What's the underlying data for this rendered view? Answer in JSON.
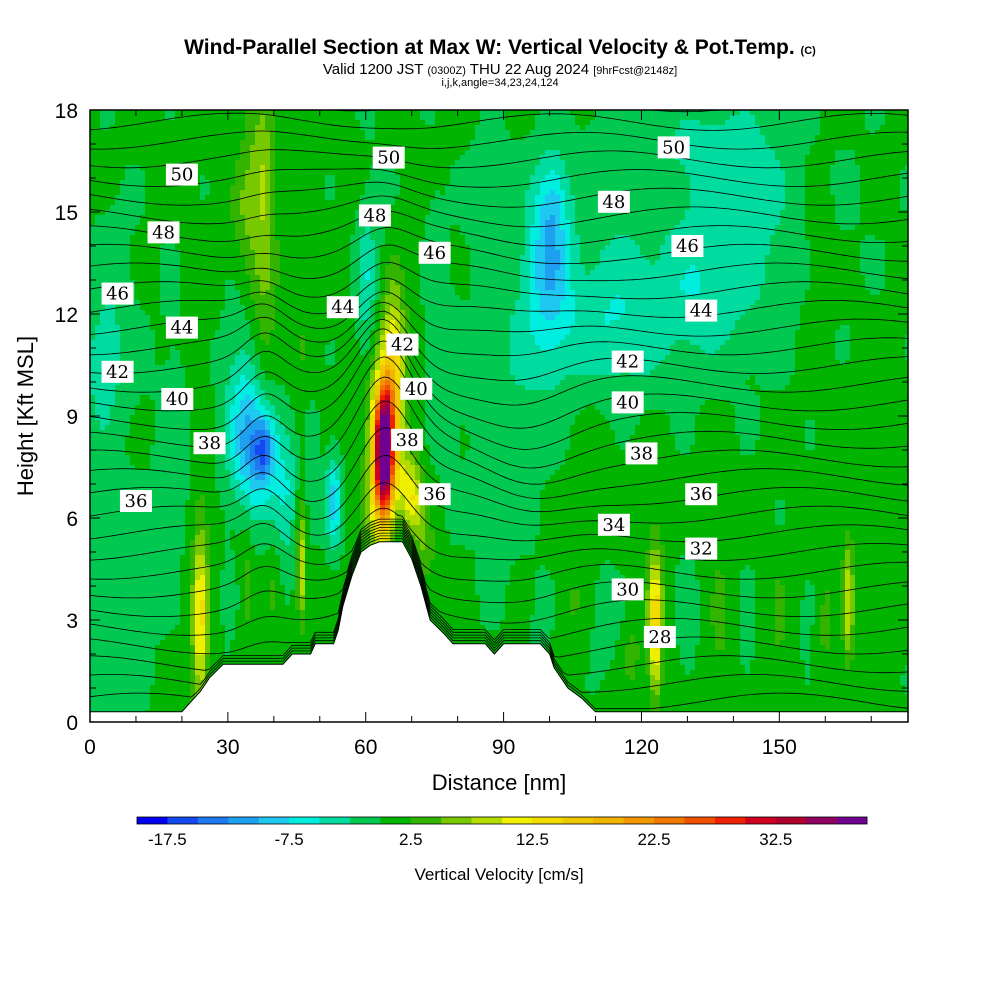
{
  "header": {
    "title": "Wind-Parallel Section at Max W: Vertical Velocity & Pot.Temp.",
    "title_mark": "(C)",
    "valid_a": "Valid 1200 JST",
    "valid_z": "(0300Z)",
    "valid_b": "THU 22 Aug 2024",
    "valid_fcst": "[9hrFcst@2148z]",
    "indices": "i,j,k,angle=34,23,24,124"
  },
  "chart_data": {
    "type": "heatmap",
    "xlabel": "Distance [nm]",
    "ylabel": "Height [Kft MSL]",
    "xlim": [
      0,
      178
    ],
    "ylim": [
      0,
      18
    ],
    "x_ticks": [
      0,
      30,
      60,
      90,
      120,
      150
    ],
    "y_ticks": [
      0,
      3,
      6,
      9,
      12,
      15,
      18
    ],
    "colorbar": {
      "label": "Vertical Velocity [cm/s]",
      "tick_labels": [
        "-17.5",
        "-7.5",
        "2.5",
        "12.5",
        "22.5",
        "32.5"
      ],
      "tick_values": [
        -17.5,
        -7.5,
        2.5,
        12.5,
        22.5,
        32.5
      ],
      "range": [
        -20,
        40
      ],
      "step": 2.5,
      "colors": [
        "#0000f0",
        "#1448f0",
        "#1e78f0",
        "#1ea0f0",
        "#1ec8f0",
        "#00eee0",
        "#00dca0",
        "#00c850",
        "#00b400",
        "#32b400",
        "#78c800",
        "#b4dc00",
        "#eef000",
        "#f0dc00",
        "#f0c800",
        "#f0b400",
        "#f09600",
        "#f07800",
        "#f05000",
        "#f02000",
        "#d00020",
        "#b00030",
        "#900060",
        "#700090"
      ]
    },
    "terrain_profile": [
      [
        0,
        0.3
      ],
      [
        20,
        0.3
      ],
      [
        22,
        0.6
      ],
      [
        24,
        0.9
      ],
      [
        26,
        1.3
      ],
      [
        29,
        1.7
      ],
      [
        42,
        1.7
      ],
      [
        44,
        2.0
      ],
      [
        48,
        2.0
      ],
      [
        49,
        2.3
      ],
      [
        53,
        2.3
      ],
      [
        54,
        2.7
      ],
      [
        55,
        3.4
      ],
      [
        57,
        4.3
      ],
      [
        59,
        5.0
      ],
      [
        61,
        5.2
      ],
      [
        63,
        5.3
      ],
      [
        68,
        5.3
      ],
      [
        70,
        4.8
      ],
      [
        72,
        4.0
      ],
      [
        74,
        3.0
      ],
      [
        77,
        2.6
      ],
      [
        79,
        2.3
      ],
      [
        86,
        2.3
      ],
      [
        88,
        2.0
      ],
      [
        90,
        2.3
      ],
      [
        98,
        2.3
      ],
      [
        100,
        2.0
      ],
      [
        101,
        1.6
      ],
      [
        104,
        1.0
      ],
      [
        107,
        0.7
      ],
      [
        110,
        0.3
      ],
      [
        178,
        0.3
      ]
    ],
    "theta_contour_labels": [
      {
        "text": "50",
        "x": 20,
        "y": 16.1
      },
      {
        "text": "48",
        "x": 16,
        "y": 14.4
      },
      {
        "text": "46",
        "x": 6,
        "y": 12.6
      },
      {
        "text": "44",
        "x": 20,
        "y": 11.6
      },
      {
        "text": "42",
        "x": 6,
        "y": 10.3
      },
      {
        "text": "40",
        "x": 19,
        "y": 9.5
      },
      {
        "text": "38",
        "x": 26,
        "y": 8.2
      },
      {
        "text": "36",
        "x": 10,
        "y": 6.5
      },
      {
        "text": "50",
        "x": 65,
        "y": 16.6
      },
      {
        "text": "48",
        "x": 62,
        "y": 14.9
      },
      {
        "text": "46",
        "x": 75,
        "y": 13.8
      },
      {
        "text": "44",
        "x": 55,
        "y": 12.2
      },
      {
        "text": "42",
        "x": 68,
        "y": 11.1
      },
      {
        "text": "40",
        "x": 71,
        "y": 9.8
      },
      {
        "text": "38",
        "x": 69,
        "y": 8.3
      },
      {
        "text": "36",
        "x": 75,
        "y": 6.7
      },
      {
        "text": "50",
        "x": 127,
        "y": 16.9
      },
      {
        "text": "48",
        "x": 114,
        "y": 15.3
      },
      {
        "text": "46",
        "x": 130,
        "y": 14.0
      },
      {
        "text": "44",
        "x": 133,
        "y": 12.1
      },
      {
        "text": "42",
        "x": 117,
        "y": 10.6
      },
      {
        "text": "40",
        "x": 117,
        "y": 9.4
      },
      {
        "text": "38",
        "x": 120,
        "y": 7.9
      },
      {
        "text": "36",
        "x": 133,
        "y": 6.7
      },
      {
        "text": "34",
        "x": 114,
        "y": 5.8
      },
      {
        "text": "32",
        "x": 133,
        "y": 5.1
      },
      {
        "text": "30",
        "x": 117,
        "y": 3.9
      },
      {
        "text": "28",
        "x": 124,
        "y": 2.5
      }
    ]
  }
}
